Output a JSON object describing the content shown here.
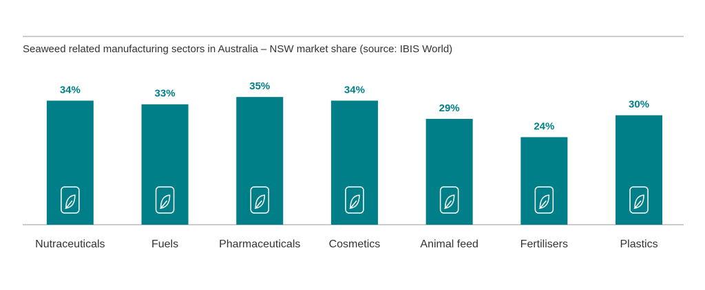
{
  "chart_data": {
    "type": "bar",
    "title": "Seaweed related manufacturing sectors in Australia – NSW market share (source: IBIS World)",
    "categories": [
      "Nutraceuticals",
      "Fuels",
      "Pharmaceuticals",
      "Cosmetics",
      "Animal feed",
      "Fertilisers",
      "Plastics"
    ],
    "values": [
      34,
      33,
      35,
      34,
      29,
      24,
      30
    ],
    "value_labels": [
      "34%",
      "33%",
      "35%",
      "34%",
      "29%",
      "24%",
      "30%"
    ],
    "color": "#007f88"
  }
}
